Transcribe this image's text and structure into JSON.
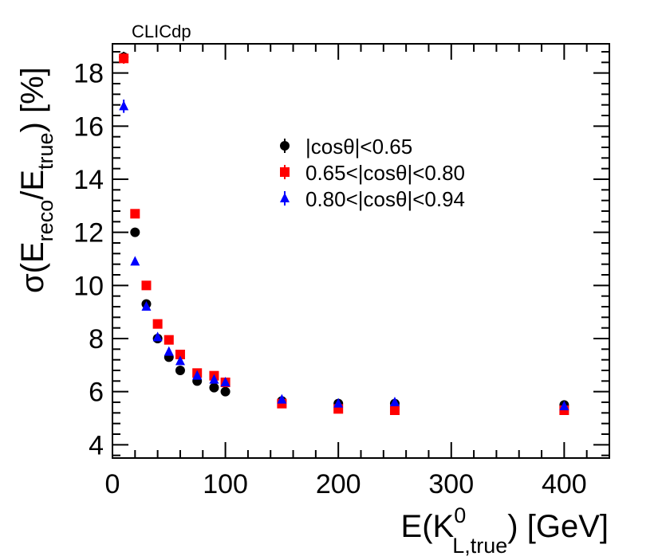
{
  "chart_data": {
    "type": "scatter",
    "credit": "CLICdp",
    "xlabel": {
      "main": "E(K",
      "sup": "0",
      "sub": "L,true",
      "tail": ") [GeV]"
    },
    "ylabel": {
      "pre": "σ(E",
      "sub1": "reco",
      "mid": "/E",
      "sub2": "true",
      "tail": ") [%]"
    },
    "xlim": [
      0,
      440
    ],
    "ylim": [
      3.5,
      19.1
    ],
    "xticks": [
      {
        "value": 0,
        "label": "0"
      },
      {
        "value": 100,
        "label": "100"
      },
      {
        "value": 200,
        "label": "200"
      },
      {
        "value": 300,
        "label": "300"
      },
      {
        "value": 400,
        "label": "400"
      }
    ],
    "yticks": [
      {
        "value": 4,
        "label": "4"
      },
      {
        "value": 6,
        "label": "6"
      },
      {
        "value": 8,
        "label": "8"
      },
      {
        "value": 10,
        "label": "10"
      },
      {
        "value": 12,
        "label": "12"
      },
      {
        "value": 14,
        "label": "14"
      },
      {
        "value": 16,
        "label": "16"
      },
      {
        "value": 18,
        "label": "18"
      }
    ],
    "legend_position": "top-right-center",
    "series": [
      {
        "name": "|cosθ|<0.65",
        "marker": "circle",
        "color": "#000000",
        "points": [
          {
            "x": 10,
            "y": 18.6,
            "err": 0.2
          },
          {
            "x": 20,
            "y": 12.0,
            "err": 0.1
          },
          {
            "x": 30,
            "y": 9.3,
            "err": 0.1
          },
          {
            "x": 40,
            "y": 8.0,
            "err": 0.1
          },
          {
            "x": 50,
            "y": 7.3,
            "err": 0.1
          },
          {
            "x": 60,
            "y": 6.8,
            "err": 0.1
          },
          {
            "x": 75,
            "y": 6.4,
            "err": 0.1
          },
          {
            "x": 90,
            "y": 6.15,
            "err": 0.1
          },
          {
            "x": 100,
            "y": 6.0,
            "err": 0.1
          },
          {
            "x": 150,
            "y": 5.65,
            "err": 0.1
          },
          {
            "x": 200,
            "y": 5.55,
            "err": 0.1
          },
          {
            "x": 250,
            "y": 5.55,
            "err": 0.1
          },
          {
            "x": 400,
            "y": 5.5,
            "err": 0.1
          }
        ]
      },
      {
        "name": "0.65<|cosθ|<0.80",
        "marker": "square",
        "color": "#ff0000",
        "points": [
          {
            "x": 10,
            "y": 18.55,
            "err": 0.2
          },
          {
            "x": 20,
            "y": 12.7,
            "err": 0.1
          },
          {
            "x": 30,
            "y": 10.0,
            "err": 0.1
          },
          {
            "x": 40,
            "y": 8.55,
            "err": 0.1
          },
          {
            "x": 50,
            "y": 7.95,
            "err": 0.1
          },
          {
            "x": 60,
            "y": 7.4,
            "err": 0.1
          },
          {
            "x": 75,
            "y": 6.7,
            "err": 0.1
          },
          {
            "x": 90,
            "y": 6.6,
            "err": 0.1
          },
          {
            "x": 100,
            "y": 6.35,
            "err": 0.1
          },
          {
            "x": 150,
            "y": 5.55,
            "err": 0.1
          },
          {
            "x": 200,
            "y": 5.35,
            "err": 0.1
          },
          {
            "x": 250,
            "y": 5.3,
            "err": 0.1
          },
          {
            "x": 400,
            "y": 5.3,
            "err": 0.1
          }
        ]
      },
      {
        "name": "0.80<|cosθ|<0.94",
        "marker": "triangle",
        "color": "#0000ff",
        "points": [
          {
            "x": 10,
            "y": 16.75,
            "err": 0.25
          },
          {
            "x": 20,
            "y": 10.9,
            "err": 0.1
          },
          {
            "x": 30,
            "y": 9.2,
            "err": 0.1
          },
          {
            "x": 40,
            "y": 8.05,
            "err": 0.1
          },
          {
            "x": 50,
            "y": 7.5,
            "err": 0.1
          },
          {
            "x": 60,
            "y": 7.15,
            "err": 0.1
          },
          {
            "x": 75,
            "y": 6.6,
            "err": 0.1
          },
          {
            "x": 90,
            "y": 6.45,
            "err": 0.1
          },
          {
            "x": 100,
            "y": 6.35,
            "err": 0.1
          },
          {
            "x": 150,
            "y": 5.7,
            "err": 0.1
          },
          {
            "x": 200,
            "y": 5.55,
            "err": 0.1
          },
          {
            "x": 250,
            "y": 5.6,
            "err": 0.1
          },
          {
            "x": 400,
            "y": 5.45,
            "err": 0.1
          }
        ]
      }
    ]
  }
}
